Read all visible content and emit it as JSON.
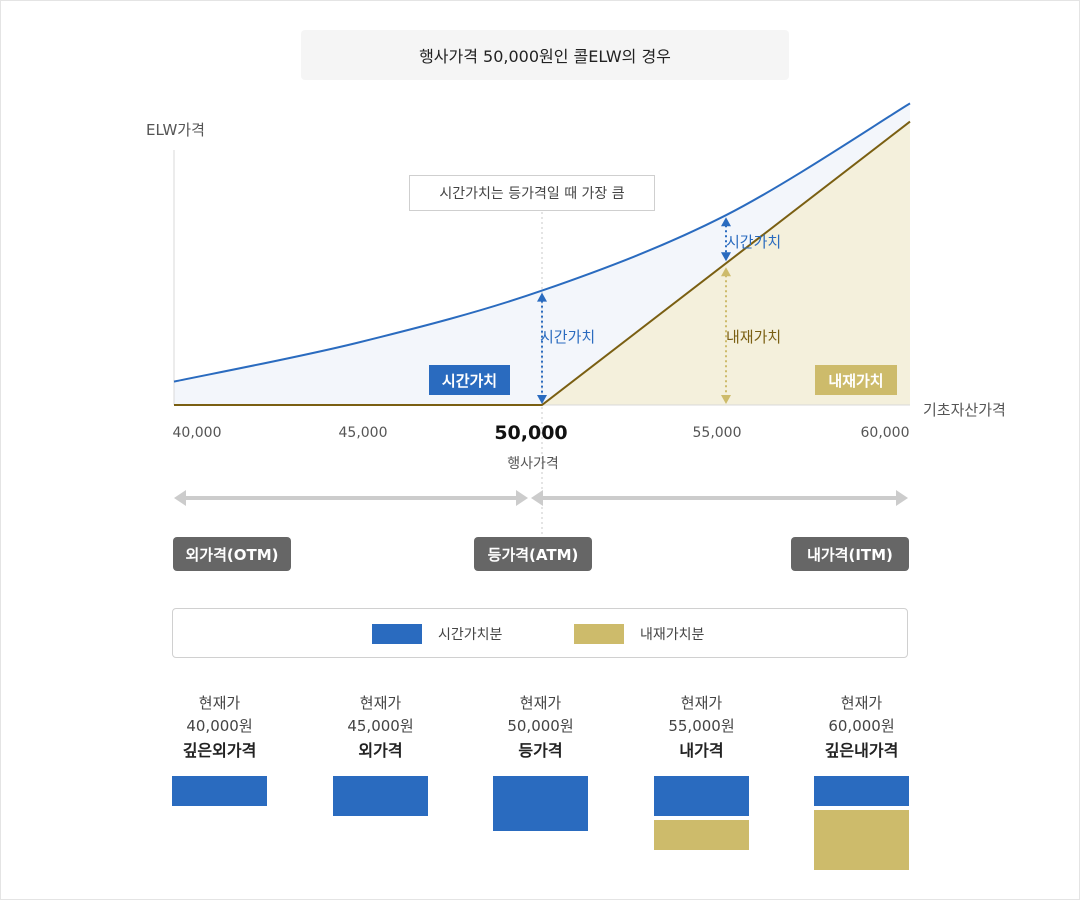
{
  "title": "행사가격 50,000원인 콜ELW의 경우",
  "colors": {
    "time_value": "#2a6bbf",
    "time_value_fill": "#f3f6fb",
    "intrinsic_line": "#7a5f12",
    "intrinsic_fill": "#f4f0dc",
    "intrinsic_box": "#cdbb6b",
    "arrow": "#cccccc",
    "money_tag": "#666666"
  },
  "chart_data": {
    "type": "line",
    "ylabel": "ELW가격",
    "xlabel": "기초자산가격",
    "x_ticks": [
      "40,000",
      "45,000",
      "50,000",
      "55,000",
      "60,000"
    ],
    "x_tick_values": [
      40000,
      45000,
      50000,
      55000,
      60000
    ],
    "xlim": [
      40000,
      60000
    ],
    "major_tick": "50,000",
    "strike_label": "행사가격",
    "strike": 50000,
    "callout": "시간가치는 등가격일 때 가장 큼",
    "series": [
      {
        "values_x": [
          40000,
          45000,
          50000,
          55000,
          60000
        ],
        "values_y": [
          0.09,
          0.24,
          0.44,
          0.73,
          1.16
        ]
      },
      {
        "values_x": [
          40000,
          50000,
          60000
        ],
        "values_y": [
          0,
          0,
          1.09
        ]
      }
    ],
    "annotations": {
      "time_value_atm": "시간가치",
      "time_value_itm": "시간가치",
      "intrinsic_itm": "내재가치",
      "time_value_tag": "시간가치",
      "intrinsic_tag": "내재가치"
    }
  },
  "moneyness": {
    "otm": "외가격(OTM)",
    "atm": "등가격(ATM)",
    "itm": "내가격(ITM)"
  },
  "legend": {
    "time": "시간가치분",
    "intrinsic": "내재가치분"
  },
  "scenarios": [
    {
      "line1": "현재가",
      "price": "40,000원",
      "status": "깊은외가격",
      "time_value": 0.3,
      "intrinsic_value": 0
    },
    {
      "line1": "현재가",
      "price": "45,000원",
      "status": "외가격",
      "time_value": 0.4,
      "intrinsic_value": 0
    },
    {
      "line1": "현재가",
      "price": "50,000원",
      "status": "등가격",
      "time_value": 0.55,
      "intrinsic_value": 0
    },
    {
      "line1": "현재가",
      "price": "55,000원",
      "status": "내가격",
      "time_value": 0.4,
      "intrinsic_value": 0.3
    },
    {
      "line1": "현재가",
      "price": "60,000원",
      "status": "깊은내가격",
      "time_value": 0.3,
      "intrinsic_value": 0.6
    }
  ]
}
